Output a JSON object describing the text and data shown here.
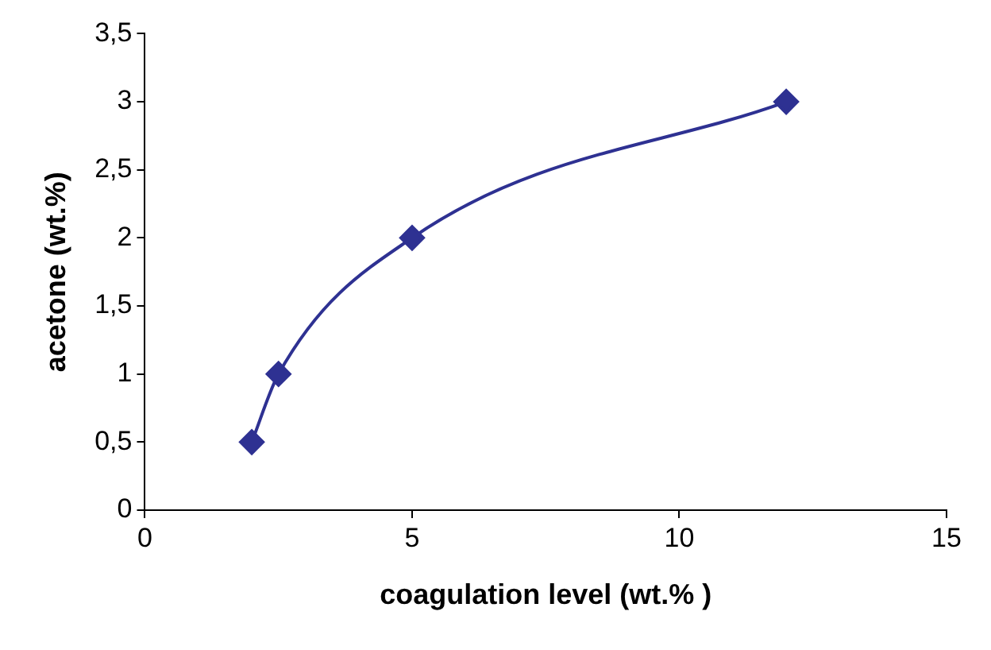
{
  "chart_data": {
    "type": "line",
    "xlabel": "coagulation level (wt.% )",
    "ylabel": "acetone (wt.%)",
    "x": [
      2,
      2.5,
      5,
      12
    ],
    "series": [
      {
        "color": "#2e3192",
        "values": [
          0.5,
          1,
          2,
          3
        ]
      }
    ],
    "xlim": [
      0,
      15
    ],
    "xticks": [
      0,
      5,
      10,
      15
    ],
    "ylim": [
      0,
      3.5
    ],
    "yticks": [
      0,
      {
        "value": 0.5,
        "label": "0,5"
      },
      1,
      {
        "value": 1.5,
        "label": "1,5"
      },
      2,
      {
        "value": 2.5,
        "label": "2,5"
      },
      3,
      {
        "value": 3.5,
        "label": "3,5"
      }
    ],
    "grid": false,
    "legend": false,
    "marker": "diamond",
    "line_style": "solid"
  }
}
